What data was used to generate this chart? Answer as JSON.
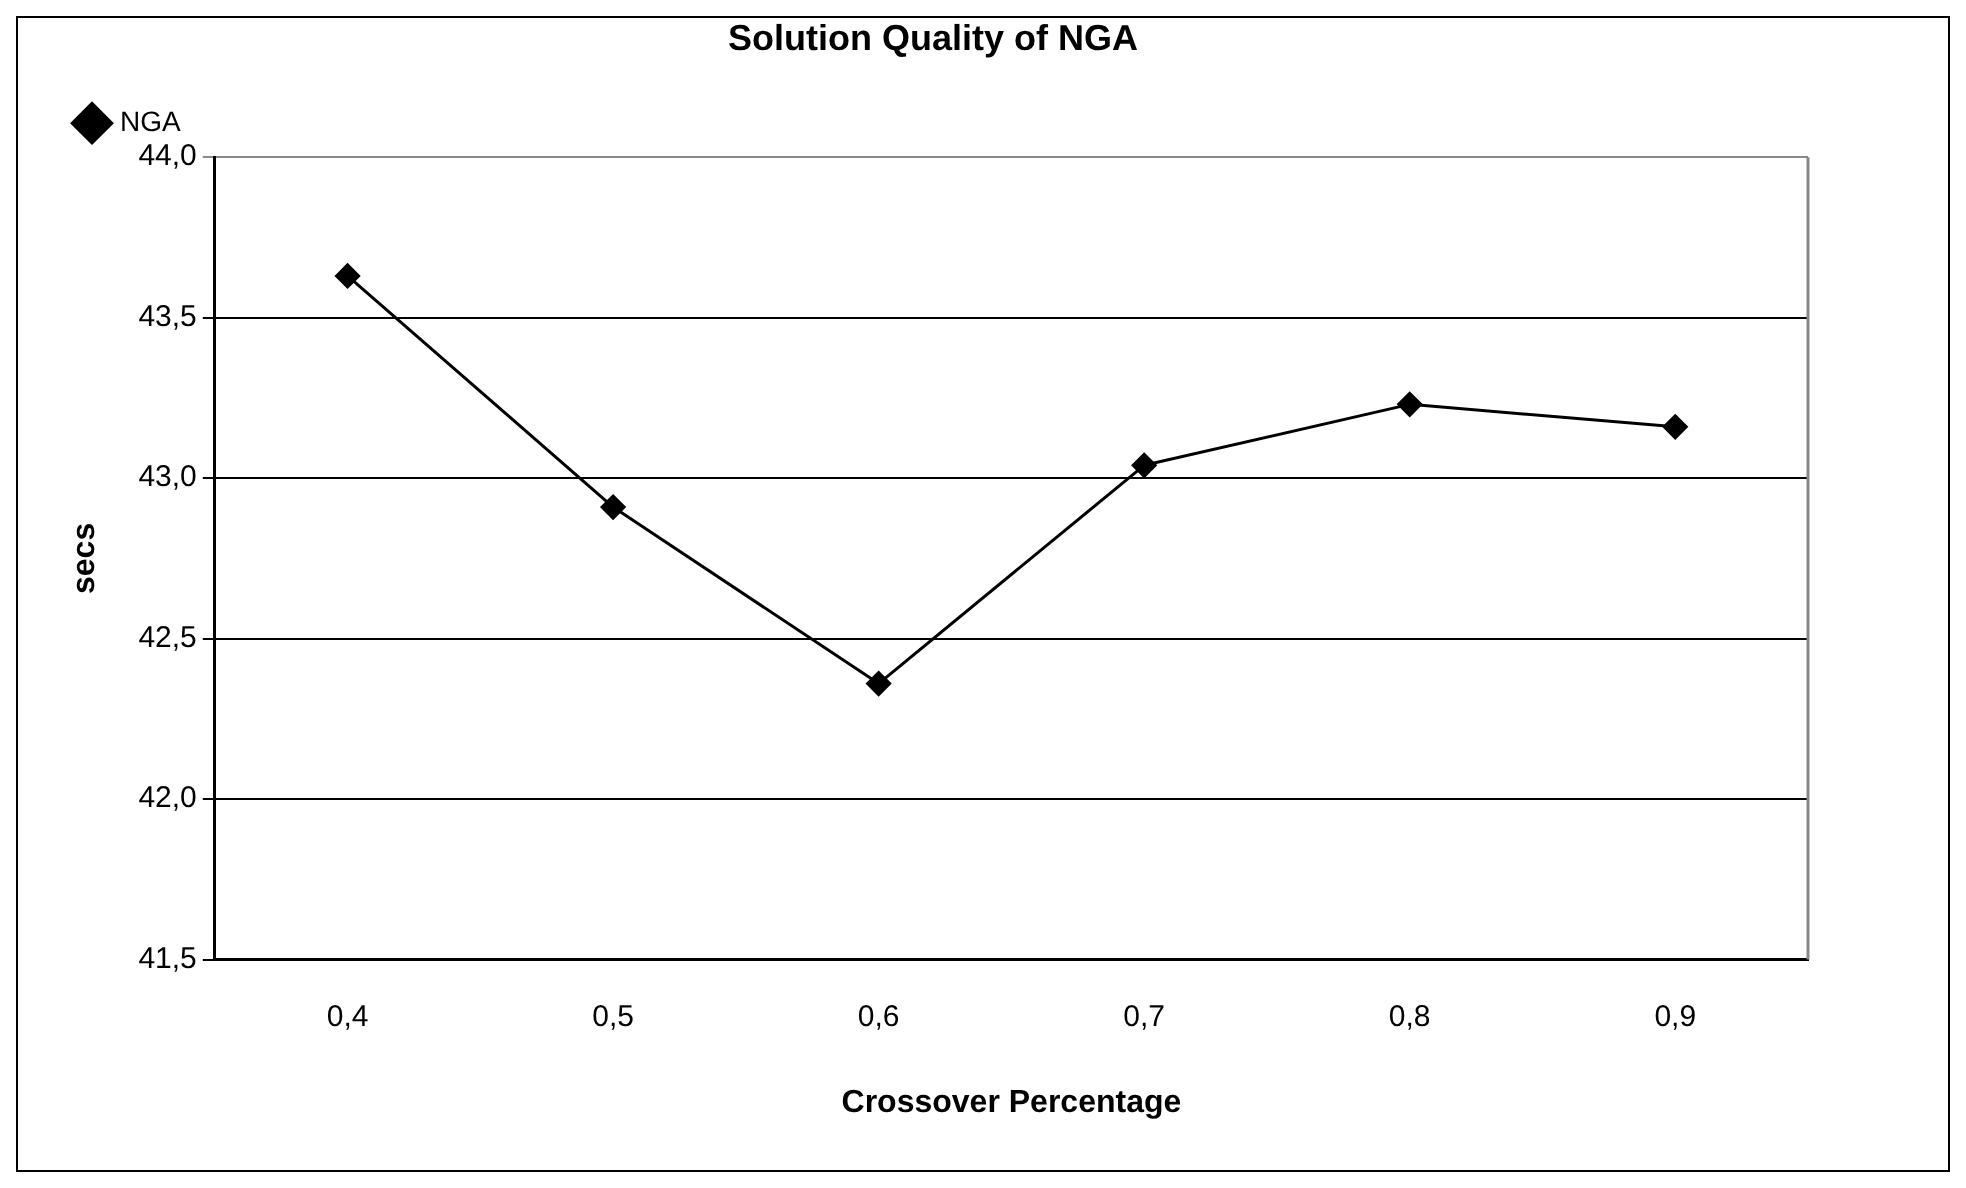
{
  "chart_data": {
    "type": "line",
    "title": "Solution Quality of NGA",
    "xlabel": "Crossover Percentage",
    "ylabel": "secs",
    "categories": [
      "0,4",
      "0,5",
      "0,6",
      "0,7",
      "0,8",
      "0,9"
    ],
    "series": [
      {
        "name": "NGA",
        "color": "#000000",
        "values": [
          43.63,
          42.91,
          42.36,
          43.04,
          43.23,
          43.16
        ]
      }
    ],
    "ylim": [
      41.5,
      44.0
    ],
    "yticks": [
      {
        "value": 41.5,
        "label": "41,5"
      },
      {
        "value": 42.0,
        "label": "42,0"
      },
      {
        "value": 42.5,
        "label": "42,5"
      },
      {
        "value": 43.0,
        "label": "43,0"
      },
      {
        "value": 43.5,
        "label": "43,5"
      },
      {
        "value": 44.0,
        "label": "44,0"
      }
    ],
    "grid": "y",
    "legend": "top left",
    "marker": "diamond",
    "line_style": "solid"
  }
}
